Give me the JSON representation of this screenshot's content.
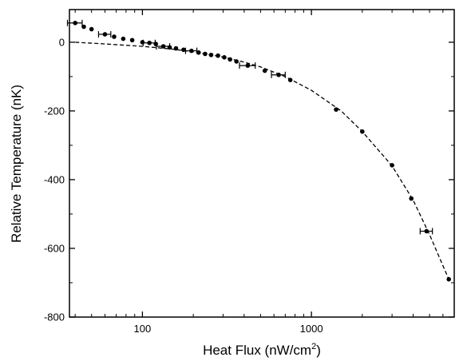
{
  "chart_data": {
    "type": "scatter",
    "xlabel": "Heat Flux (nW/cm",
    "xlabel_sup": "2",
    "xlabel_end": ")",
    "ylabel": "Relative Temperature (nK)",
    "xscale": "log",
    "xlim": [
      37,
      7000
    ],
    "ylim": [
      -800,
      95
    ],
    "x_ticks": [
      100,
      1000
    ],
    "x_tick_labels": [
      "100",
      "1000"
    ],
    "y_ticks": [
      0,
      -200,
      -400,
      -600,
      -800
    ],
    "y_tick_labels": [
      "0",
      "-200",
      "-400",
      "-600",
      "-800"
    ],
    "grid": false,
    "series": [
      {
        "style": "markers",
        "points": [
          {
            "x": 40,
            "y": 56,
            "err_x": 4
          },
          {
            "x": 45,
            "y": 45
          },
          {
            "x": 50,
            "y": 38
          },
          {
            "x": 60,
            "y": 23,
            "err_x": 5
          },
          {
            "x": 68,
            "y": 16
          },
          {
            "x": 77,
            "y": 10
          },
          {
            "x": 87,
            "y": 6
          },
          {
            "x": 100,
            "y": 0
          },
          {
            "x": 110,
            "y": -2,
            "err_x": 9
          },
          {
            "x": 120,
            "y": -5
          },
          {
            "x": 133,
            "y": -12,
            "err_x": 12
          },
          {
            "x": 145,
            "y": -15
          },
          {
            "x": 158,
            "y": -18
          },
          {
            "x": 175,
            "y": -22
          },
          {
            "x": 195,
            "y": -25,
            "err_x": 15
          },
          {
            "x": 215,
            "y": -30
          },
          {
            "x": 235,
            "y": -34
          },
          {
            "x": 255,
            "y": -37
          },
          {
            "x": 280,
            "y": -39
          },
          {
            "x": 305,
            "y": -44
          },
          {
            "x": 330,
            "y": -50
          },
          {
            "x": 360,
            "y": -56
          },
          {
            "x": 420,
            "y": -68,
            "err_x": 45
          },
          {
            "x": 530,
            "y": -83
          },
          {
            "x": 640,
            "y": -95,
            "err_x": 60
          },
          {
            "x": 750,
            "y": -110
          },
          {
            "x": 1400,
            "y": -196
          },
          {
            "x": 2000,
            "y": -260
          },
          {
            "x": 3000,
            "y": -358
          },
          {
            "x": 3900,
            "y": -455
          },
          {
            "x": 4800,
            "y": -550,
            "err_x": 400
          },
          {
            "x": 6500,
            "y": -690
          }
        ]
      },
      {
        "style": "dashed-line",
        "points": [
          {
            "x": 40,
            "y": 0
          },
          {
            "x": 60,
            "y": -5
          },
          {
            "x": 100,
            "y": -12
          },
          {
            "x": 150,
            "y": -20
          },
          {
            "x": 200,
            "y": -28
          },
          {
            "x": 300,
            "y": -43
          },
          {
            "x": 400,
            "y": -58
          },
          {
            "x": 500,
            "y": -72
          },
          {
            "x": 700,
            "y": -100
          },
          {
            "x": 1000,
            "y": -140
          },
          {
            "x": 1500,
            "y": -200
          },
          {
            "x": 2000,
            "y": -260
          },
          {
            "x": 3000,
            "y": -360
          },
          {
            "x": 4000,
            "y": -460
          },
          {
            "x": 5000,
            "y": -560
          },
          {
            "x": 6500,
            "y": -690
          }
        ]
      }
    ]
  }
}
